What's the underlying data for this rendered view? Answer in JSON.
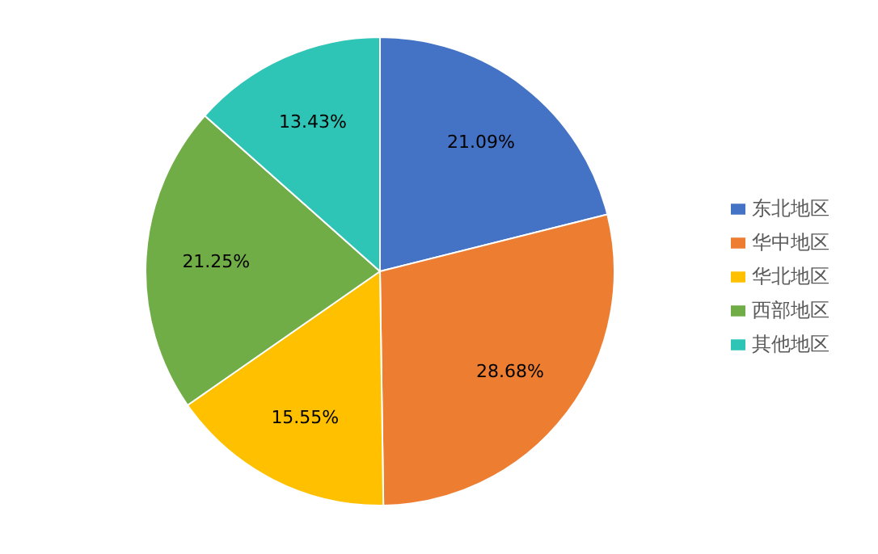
{
  "chart_data": {
    "type": "pie",
    "categories": [
      "东北地区",
      "华中地区",
      "华北地区",
      "西部地区",
      "其他地区"
    ],
    "values": [
      21.09,
      28.68,
      15.55,
      21.25,
      13.43
    ],
    "value_labels": [
      "21.09%",
      "28.68%",
      "15.55%",
      "21.25%",
      "13.43%"
    ],
    "colors": [
      "#4472c4",
      "#ed7d31",
      "#ffc000",
      "#70ad47",
      "#2ec4b6"
    ],
    "legend": "right"
  }
}
